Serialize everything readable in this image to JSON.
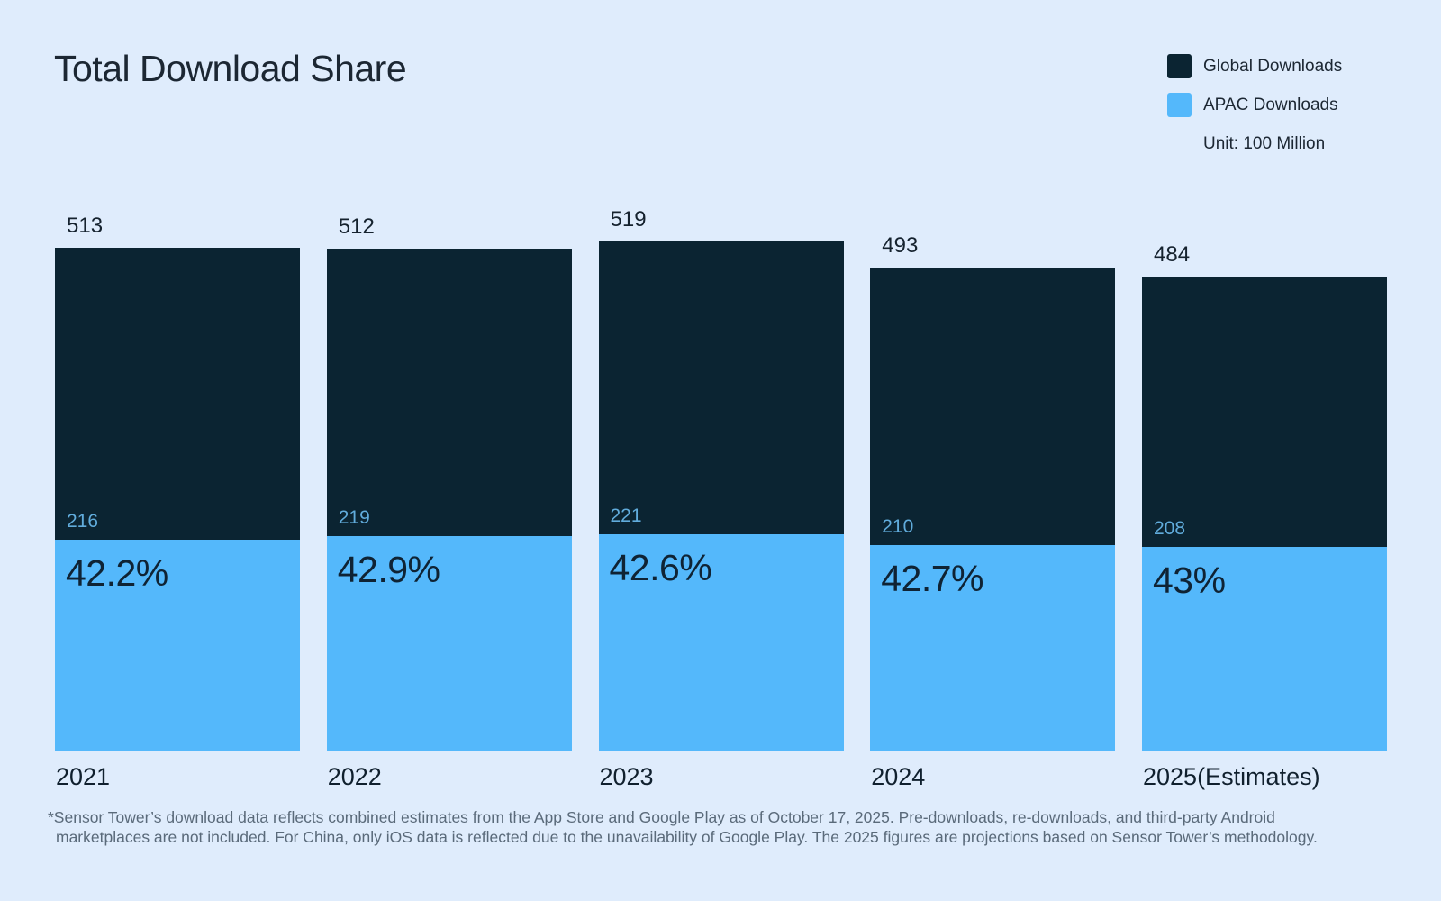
{
  "header": {
    "title": "Total Download Share"
  },
  "legend": {
    "items": [
      {
        "label": "Global Downloads",
        "color": "#0B2432"
      },
      {
        "label": "APAC Downloads",
        "color": "#54B8FB"
      }
    ],
    "unit_note": "Unit: 100 Million"
  },
  "chart_data": {
    "type": "bar",
    "subtype": "overlaid-stacked",
    "title": "Total Download Share",
    "unit": "100 Million",
    "categories": [
      "2021",
      "2022",
      "2023",
      "2024",
      "2025(Estimates)"
    ],
    "series": [
      {
        "name": "Global Downloads",
        "values": [
          513,
          512,
          519,
          493,
          484
        ],
        "color": "#0B2432"
      },
      {
        "name": "APAC Downloads",
        "values": [
          216,
          219,
          221,
          210,
          208
        ],
        "color": "#54B8FB"
      }
    ],
    "apac_share_labels": [
      "42.2%",
      "42.9%",
      "42.6%",
      "42.7%",
      "43%"
    ],
    "legend_position": "top-right",
    "grid": false,
    "colors": {
      "global": "#0B2432",
      "apac": "#54B8FB",
      "background": "#DFECFC"
    }
  },
  "footnote": "*Sensor Tower’s download data reflects combined estimates from the App Store and Google Play as of October 17, 2025. Pre-downloads, re-downloads, and third-party Android marketplaces are not included. For China, only iOS data is reflected due to the unavailability of Google Play. The 2025 figures are projections based on Sensor Tower’s methodology."
}
